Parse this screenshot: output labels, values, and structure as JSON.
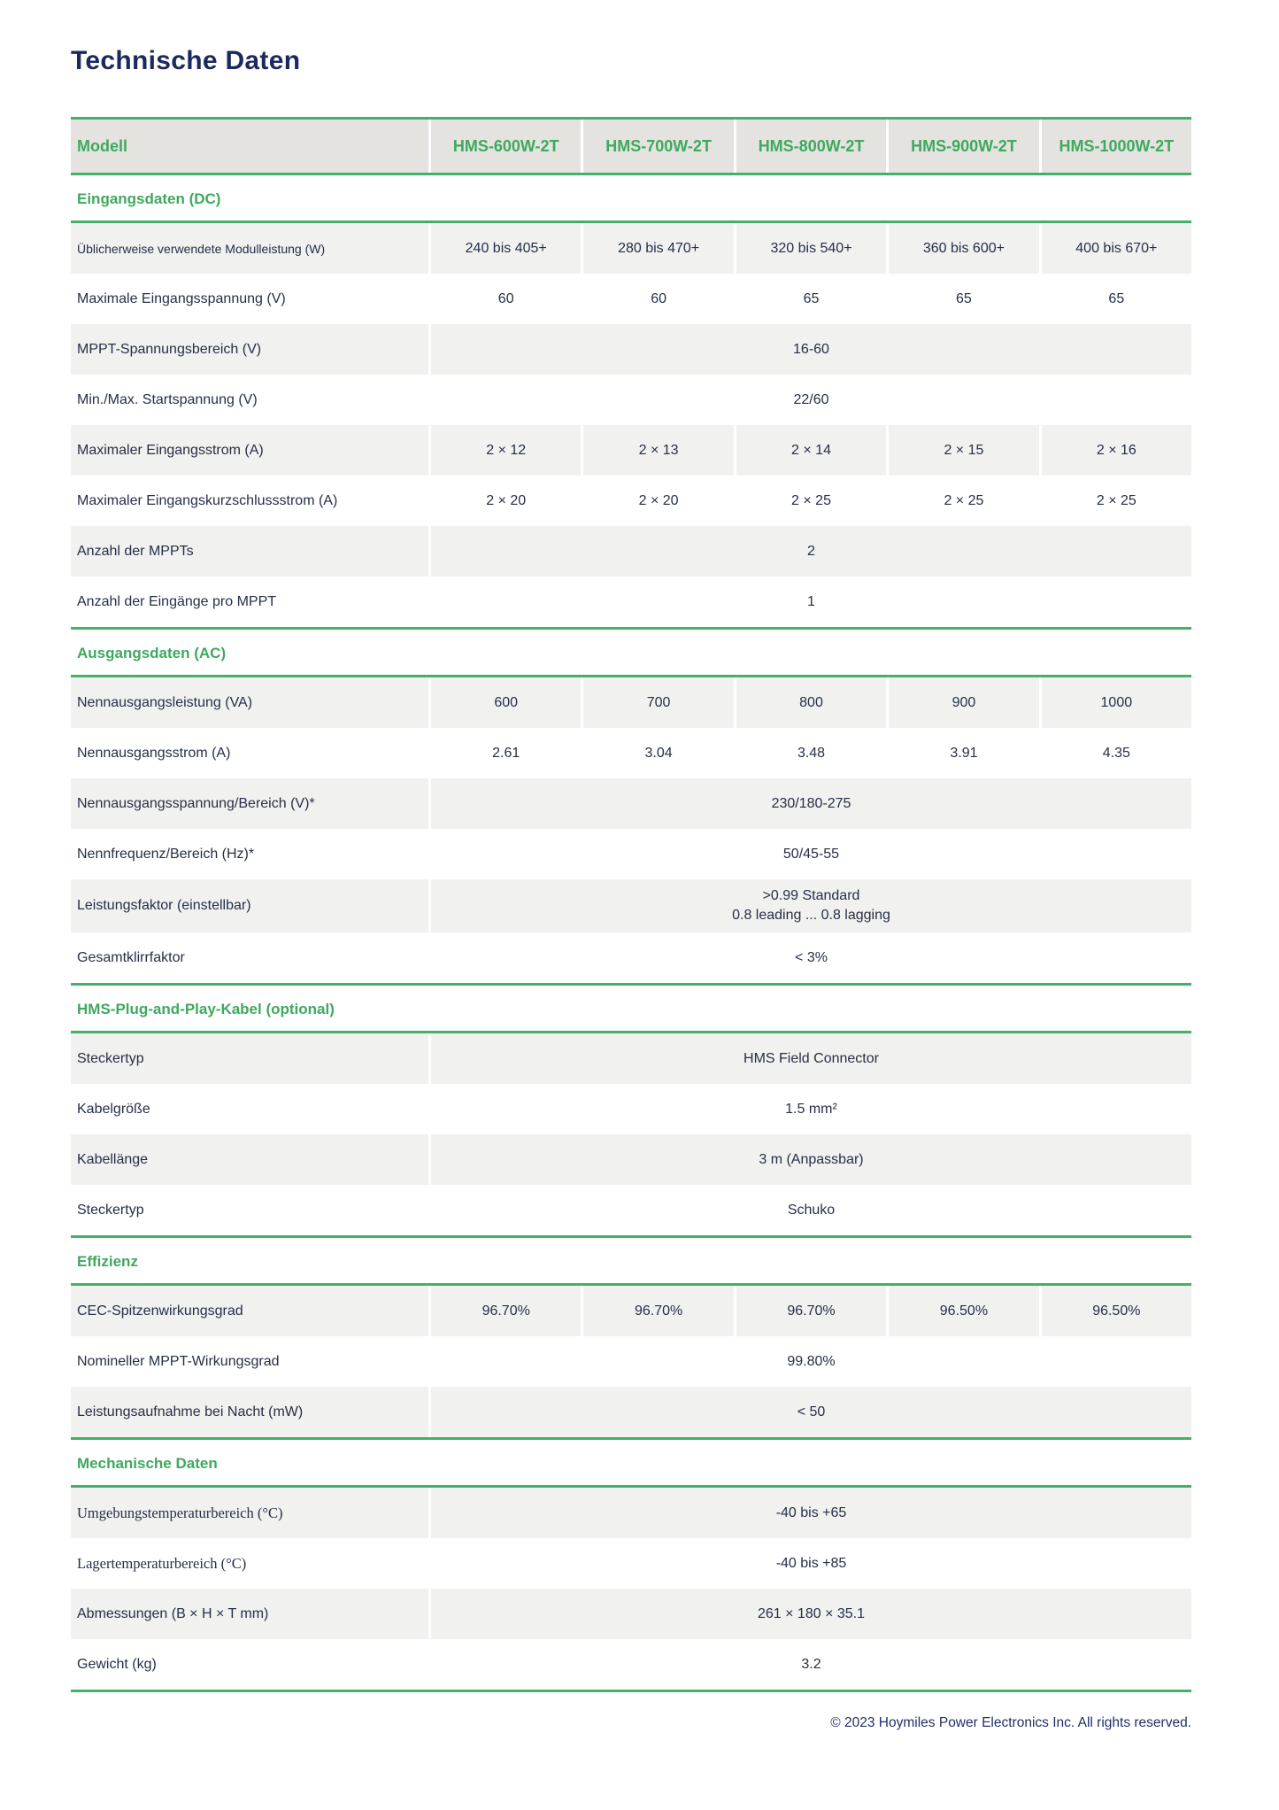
{
  "page": {
    "title": "Technische Daten",
    "footer": "© 2023 Hoymiles Power Electronics Inc. All rights reserved."
  },
  "colors": {
    "accent_green_text": "#3fa95f",
    "accent_green_line": "#43b168",
    "header_row_bg": "#e4e3df",
    "zebra_row_bg": "#f1f1ef",
    "title_navy": "#1b2a5e",
    "body_text": "#252f47"
  },
  "table": {
    "header": {
      "model_label": "Modell",
      "models": [
        "HMS-600W-2T",
        "HMS-700W-2T",
        "HMS-800W-2T",
        "HMS-900W-2T",
        "HMS-1000W-2T"
      ]
    },
    "sections": [
      {
        "title": "Eingangsdaten (DC)",
        "rows": [
          {
            "label": "Üblicherweise verwendete Modulleistung (W)",
            "label_style": "small",
            "bg": "gray",
            "values": [
              "240 bis 405+",
              "280 bis 470+",
              "320 bis 540+",
              "360 bis 600+",
              "400 bis 670+"
            ]
          },
          {
            "label": "Maximale Eingangsspannung (V)",
            "bg": "white",
            "values": [
              "60",
              "60",
              "65",
              "65",
              "65"
            ]
          },
          {
            "label": "MPPT-Spannungsbereich (V)",
            "bg": "gray",
            "merged": [
              "16-60"
            ]
          },
          {
            "label": "Min./Max. Startspannung (V)",
            "bg": "white",
            "merged": [
              "22/60"
            ]
          },
          {
            "label": "Maximaler Eingangsstrom (A)",
            "bg": "gray",
            "values": [
              "2 × 12",
              "2 × 13",
              "2 × 14",
              "2 × 15",
              "2 × 16"
            ]
          },
          {
            "label": "Maximaler Eingangskurzschlussstrom (A)",
            "bg": "white",
            "values": [
              "2 × 20",
              "2 × 20",
              "2 × 25",
              "2 × 25",
              "2 × 25"
            ]
          },
          {
            "label": "Anzahl der MPPTs",
            "bg": "gray",
            "merged": [
              "2"
            ]
          },
          {
            "label": "Anzahl der Eingänge pro MPPT",
            "bg": "white",
            "merged": [
              "1"
            ]
          }
        ]
      },
      {
        "title": "Ausgangsdaten (AC)",
        "rows": [
          {
            "label": "Nennausgangsleistung (VA)",
            "bg": "gray",
            "values": [
              "600",
              "700",
              "800",
              "900",
              "1000"
            ]
          },
          {
            "label": "Nennausgangsstrom (A)",
            "bg": "white",
            "values": [
              "2.61",
              "3.04",
              "3.48",
              "3.91",
              "4.35"
            ]
          },
          {
            "label": "Nennausgangsspannung/Bereich (V)*",
            "bg": "gray",
            "merged": [
              "230/180-275"
            ]
          },
          {
            "label": "Nennfrequenz/Bereich (Hz)*",
            "bg": "white",
            "merged": [
              "50/45-55"
            ]
          },
          {
            "label": "Leistungsfaktor (einstellbar)",
            "bg": "gray",
            "merged": [
              ">0.99 Standard",
              "0.8 leading ... 0.8 lagging"
            ]
          },
          {
            "label": "Gesamtklirrfaktor",
            "bg": "white",
            "merged": [
              "< 3%"
            ]
          }
        ]
      },
      {
        "title": "HMS-Plug-and-Play-Kabel (optional)",
        "rows": [
          {
            "label": "Steckertyp",
            "bg": "gray",
            "merged": [
              "HMS Field Connector"
            ]
          },
          {
            "label": "Kabelgröße",
            "bg": "white",
            "merged": [
              "1.5 mm²"
            ]
          },
          {
            "label": "Kabellänge",
            "bg": "gray",
            "merged": [
              "3 m (Anpassbar)"
            ]
          },
          {
            "label": "Steckertyp",
            "bg": "white",
            "merged": [
              "Schuko"
            ]
          }
        ]
      },
      {
        "title": "Effizienz",
        "rows": [
          {
            "label": "CEC-Spitzenwirkungsgrad",
            "bg": "gray",
            "values": [
              "96.70%",
              "96.70%",
              "96.70%",
              "96.50%",
              "96.50%"
            ]
          },
          {
            "label": "Nomineller MPPT-Wirkungsgrad",
            "bg": "white",
            "merged": [
              "99.80%"
            ]
          },
          {
            "label": "Leistungsaufnahme bei Nacht (mW)",
            "bg": "gray",
            "merged": [
              "< 50"
            ]
          }
        ]
      },
      {
        "title": "Mechanische Daten",
        "rows": [
          {
            "label": "Umgebungstemperaturbereich (°C)",
            "label_style": "serif",
            "bg": "gray",
            "merged": [
              "-40 bis +65"
            ]
          },
          {
            "label": "Lagertemperaturbereich (°C)",
            "label_style": "serif",
            "bg": "white",
            "merged": [
              "-40 bis +85"
            ]
          },
          {
            "label": "Abmessungen (B × H × T mm)",
            "bg": "gray",
            "merged": [
              "261 × 180 × 35.1"
            ]
          },
          {
            "label": "Gewicht (kg)",
            "bg": "white",
            "merged": [
              "3.2"
            ]
          }
        ]
      }
    ]
  }
}
